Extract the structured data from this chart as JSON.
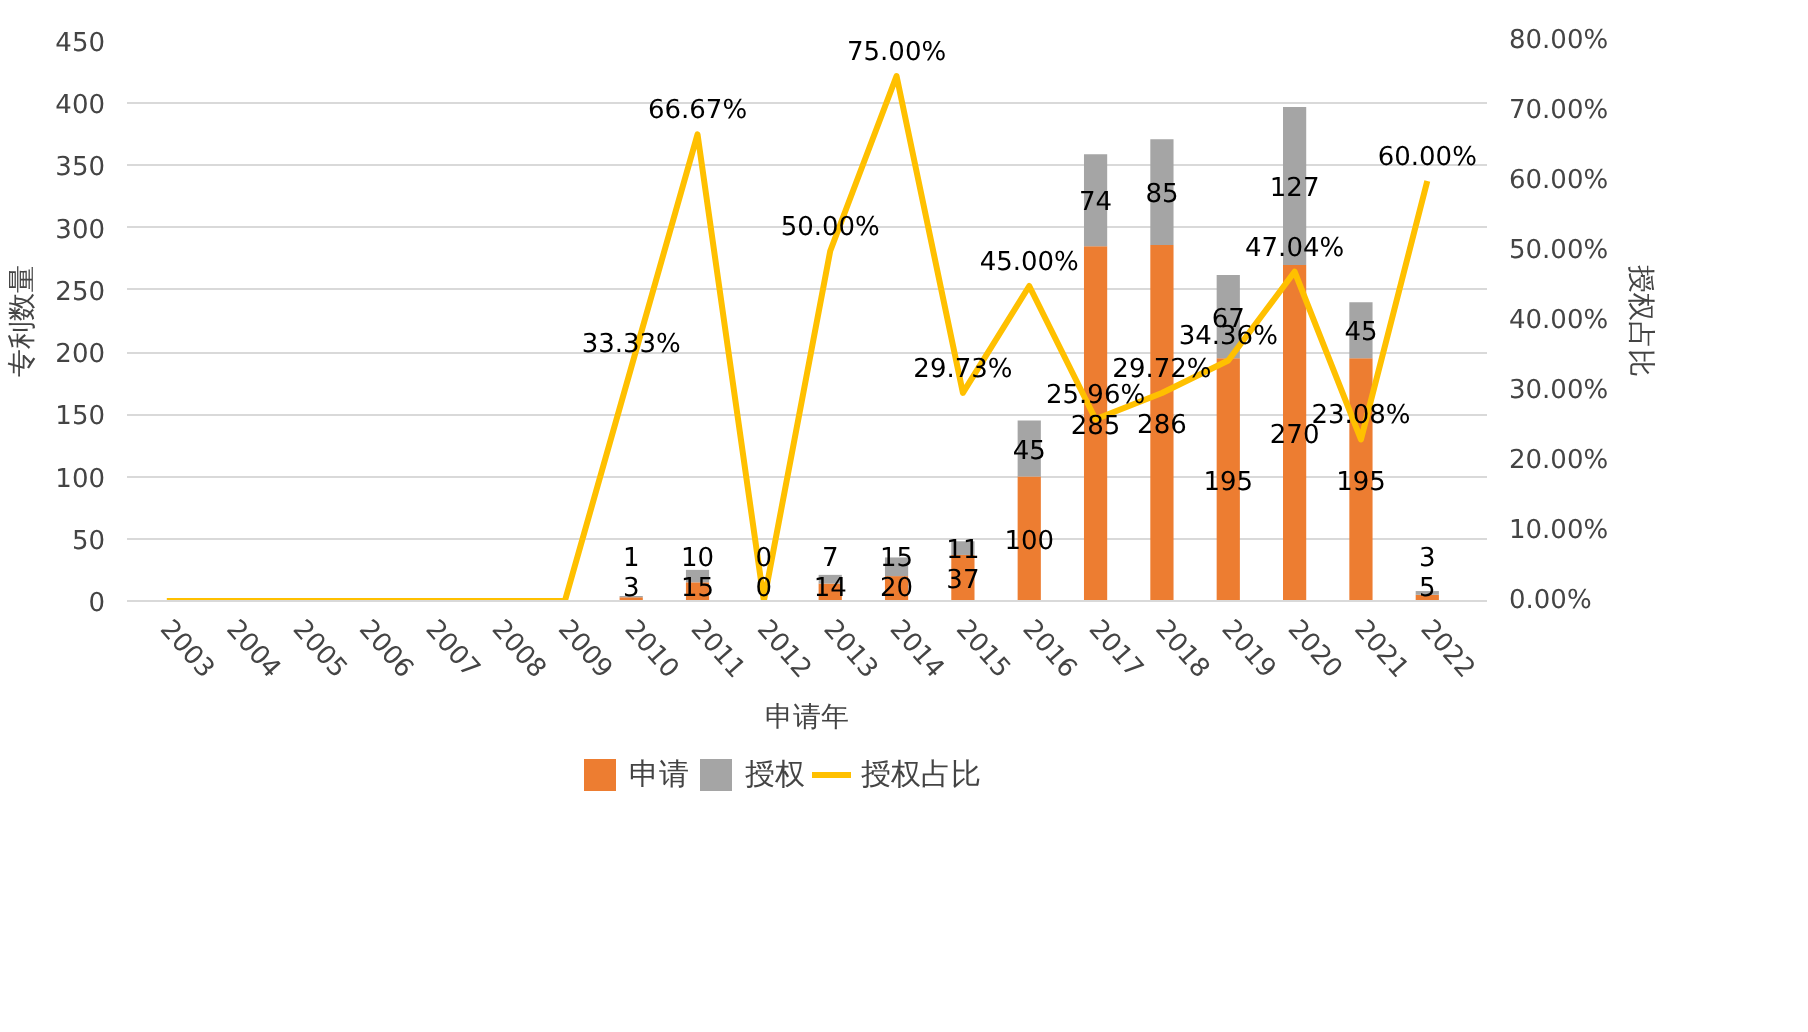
{
  "chart_data": {
    "type": "bar",
    "stacked": true,
    "xlabel": "申请年",
    "ylabel": "专利数量",
    "y2label": "授权占比",
    "categories": [
      "2003",
      "2004",
      "2005",
      "2006",
      "2007",
      "2008",
      "2009",
      "2010",
      "2011",
      "2012",
      "2013",
      "2014",
      "2015",
      "2016",
      "2017",
      "2018",
      "2019",
      "2020",
      "2021",
      "2022"
    ],
    "series": [
      {
        "name": "申请",
        "color": "#ed7d31",
        "values": [
          null,
          null,
          null,
          null,
          null,
          null,
          null,
          3,
          15,
          0,
          14,
          20,
          37,
          100,
          285,
          286,
          195,
          270,
          195,
          5
        ]
      },
      {
        "name": "授权",
        "color": "#a5a5a5",
        "values": [
          null,
          null,
          null,
          null,
          null,
          null,
          null,
          1,
          10,
          0,
          7,
          15,
          11,
          45,
          74,
          85,
          67,
          127,
          45,
          3
        ]
      },
      {
        "name": "授权占比",
        "type": "line",
        "axis": "y2",
        "color": "#ffc000",
        "values": [
          0,
          0,
          0,
          0,
          0,
          0,
          0,
          33.33,
          66.67,
          0,
          50,
          75,
          29.73,
          45,
          25.96,
          29.72,
          34.36,
          47.04,
          23.08,
          60
        ],
        "value_labels": [
          null,
          null,
          null,
          null,
          null,
          null,
          null,
          "33.33%",
          "66.67%",
          null,
          "50.00%",
          "75.00%",
          "29.73%",
          "45.00%",
          "25.96%",
          "29.72%",
          "34.36%",
          "47.04%",
          "23.08%",
          "60.00%"
        ]
      }
    ],
    "data_labels": true,
    "ylim": [
      0,
      450
    ],
    "yticks": [
      0,
      50,
      100,
      150,
      200,
      250,
      300,
      350,
      400,
      450
    ],
    "y2lim": [
      0,
      80
    ],
    "y2ticks": [
      {
        "value": 0,
        "label": "0.00%"
      },
      {
        "value": 10,
        "label": "10.00%"
      },
      {
        "value": 20,
        "label": "20.00%"
      },
      {
        "value": 30,
        "label": "30.00%"
      },
      {
        "value": 40,
        "label": "40.00%"
      },
      {
        "value": 50,
        "label": "50.00%"
      },
      {
        "value": 60,
        "label": "60.00%"
      },
      {
        "value": 70,
        "label": "70.00%"
      },
      {
        "value": 80,
        "label": "80.00%"
      }
    ],
    "grid": "y",
    "legend": "bottom"
  }
}
